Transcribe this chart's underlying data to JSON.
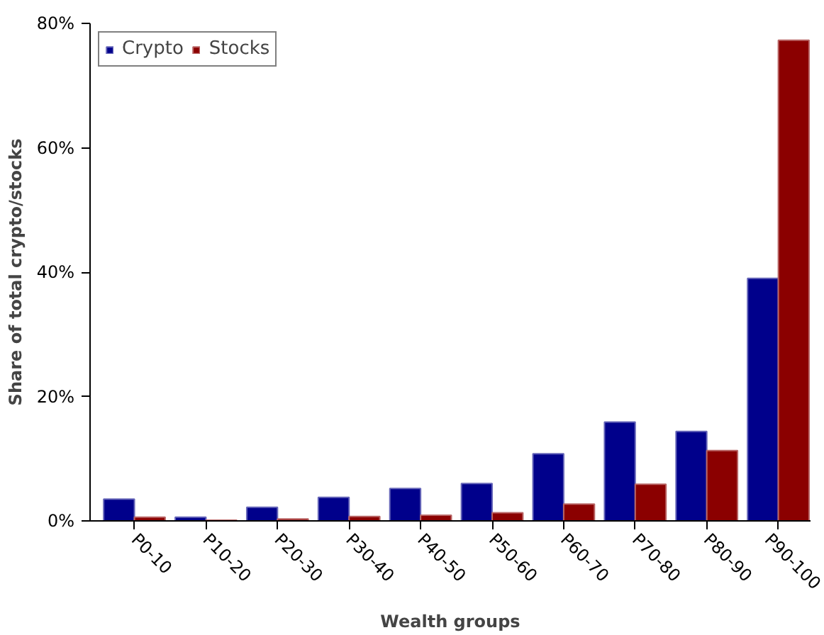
{
  "chart_data": {
    "type": "bar",
    "xlabel": "Wealth groups",
    "ylabel": "Share of total crypto/stocks",
    "categories": [
      "P0-10",
      "P10-20",
      "P20-30",
      "P30-40",
      "P40-50",
      "P50-60",
      "P60-70",
      "P70-80",
      "P80-90",
      "P90-100"
    ],
    "series": [
      {
        "name": "Crypto",
        "color": "#00008b",
        "values": [
          3.5,
          0.6,
          2.2,
          3.8,
          5.2,
          6.0,
          10.8,
          15.9,
          14.4,
          39.0
        ]
      },
      {
        "name": "Stocks",
        "color": "#8b0000",
        "values": [
          0.6,
          0.1,
          0.3,
          0.7,
          0.9,
          1.3,
          2.7,
          5.9,
          11.3,
          77.3
        ]
      }
    ],
    "ylim": [
      0,
      80
    ],
    "yticks": [
      {
        "value": 0,
        "label": "0%"
      },
      {
        "value": 20,
        "label": "20%"
      },
      {
        "value": 40,
        "label": "40%"
      },
      {
        "value": 60,
        "label": "60%"
      },
      {
        "value": 80,
        "label": "80%"
      }
    ],
    "grid": false,
    "legend": "top left"
  }
}
